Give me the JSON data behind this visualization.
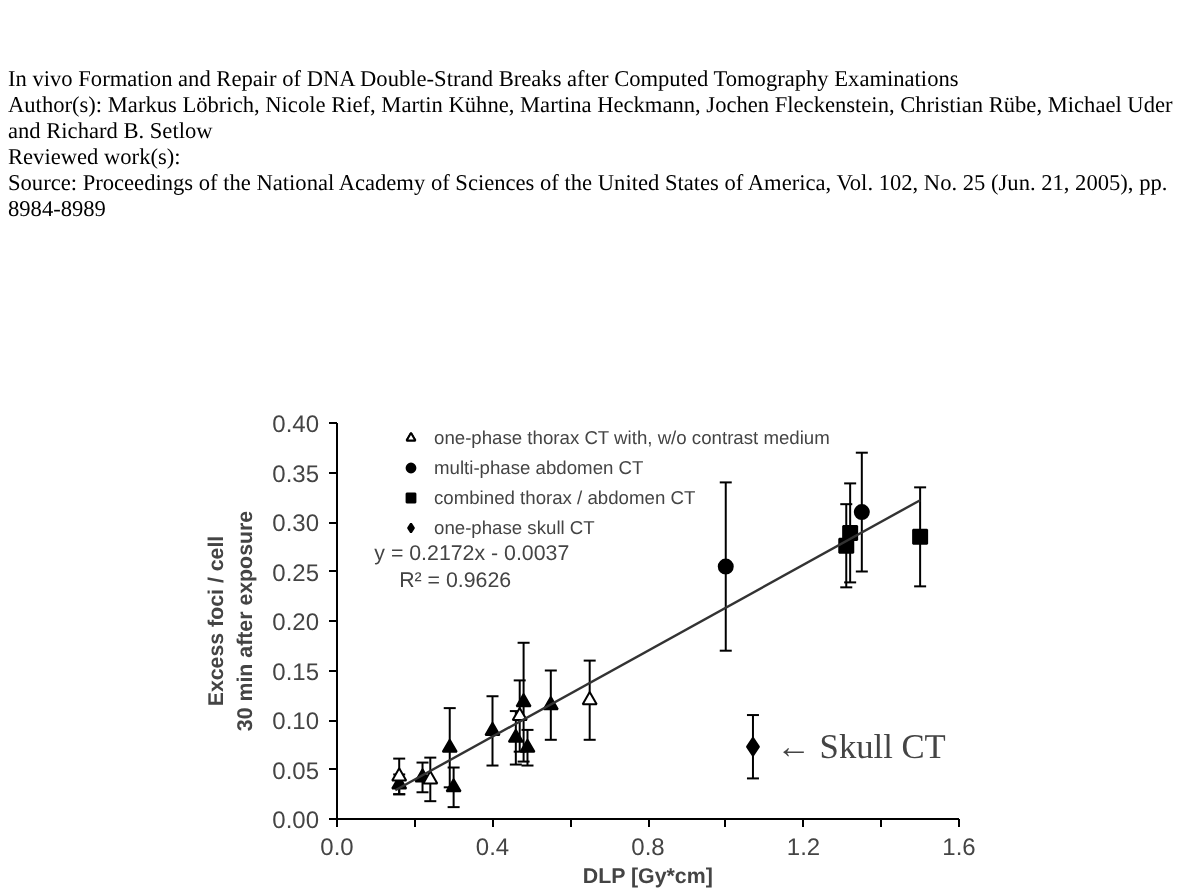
{
  "chart_data": {
    "type": "scatter",
    "title": "In vivo Formation and Repair of DNA Double-Strand Breaks after Computed Tomography Examinations",
    "subtitle": "Author(s): Markus Löbrich, Nicole Rief, Martin Kühne, Martina Heckmann, Jochen Fleckenstein, Christian Rübe, Michael Uder and Richard B. Setlow",
    "xlabel": "DLP [Gy*cm]",
    "ylabel": "Excess foci / cell\n30 min after exposure",
    "annotations": [
      "Reviewed work(s):",
      "Source: Proceedings of the National Academy of Sciences of the United States of America, Vol. 102, No. 25 (Jun. 21, 2005), pp. 8984-8989",
      "y = 0.2172x - 0.0037",
      "R² = 0.9626",
      {
        "text": "← Skull CT",
        "x": 1.07,
        "y": 0.073
      }
    ],
    "xlim": [
      0,
      1.6
    ],
    "ylim": [
      0,
      0.4
    ],
    "xticks": [
      {
        "value": 0,
        "label": "0.0"
      },
      {
        "value": 0.2,
        "label": null
      },
      0.4,
      {
        "value": 0.6,
        "label": null
      },
      0.8,
      {
        "value": 1.0,
        "label": null
      },
      1.2,
      {
        "value": 1.4,
        "label": null
      },
      1.6
    ],
    "yticks": [
      {
        "value": 0,
        "label": "0.00"
      },
      0.05,
      {
        "value": 0.1,
        "label": "0.10"
      },
      0.15,
      {
        "value": 0.2,
        "label": "0.20"
      },
      0.25,
      {
        "value": 0.3,
        "label": "0.30"
      },
      0.35,
      {
        "value": 0.4,
        "label": "0.40"
      }
    ],
    "grid": false,
    "legend": "top",
    "series": [
      {
        "name": "one-phase thorax CT with, w/o contrast medium",
        "color": "#000000",
        "marker": "triangle",
        "x": [
          0.16,
          0.22,
          0.29,
          0.3,
          0.4,
          0.46,
          0.48,
          0.49,
          0.55
        ],
        "values": [
          0.035,
          0.042,
          0.072,
          0.032,
          0.089,
          0.082,
          0.118,
          0.072,
          0.115
        ],
        "errors": [
          0.01,
          0.015,
          0.04,
          0.02,
          0.035,
          0.027,
          0.06,
          0.018,
          0.035
        ]
      },
      {
        "color": "#ffffff",
        "marker": "triangle",
        "x": [
          0.16,
          0.24,
          0.47,
          0.65
        ],
        "values": [
          0.043,
          0.04,
          0.104,
          0.12
        ],
        "errors": [
          0.018,
          0.022,
          0.036,
          0.04
        ]
      },
      {
        "name": "multi-phase abdomen CT",
        "color": "#000000",
        "marker": "circle",
        "x": [
          1.0,
          1.35
        ],
        "values": [
          0.255,
          0.31
        ],
        "errors": [
          0.085,
          0.06
        ]
      },
      {
        "name": "combined thorax / abdomen CT",
        "color": "#000000",
        "marker": "square",
        "x": [
          1.31,
          1.32,
          1.5
        ],
        "values": [
          0.276,
          0.289,
          0.285
        ],
        "errors": [
          0.042,
          0.05,
          0.05
        ]
      },
      {
        "name": "one-phase skull CT",
        "color": "#000000",
        "marker": "diamond",
        "x": [
          1.07
        ],
        "values": [
          0.073
        ],
        "errors": [
          0.032
        ]
      },
      {
        "type": "line",
        "color": "#333333",
        "marker": "none",
        "x": [
          0.15,
          1.5
        ],
        "values": [
          0.029,
          0.322
        ]
      }
    ]
  }
}
